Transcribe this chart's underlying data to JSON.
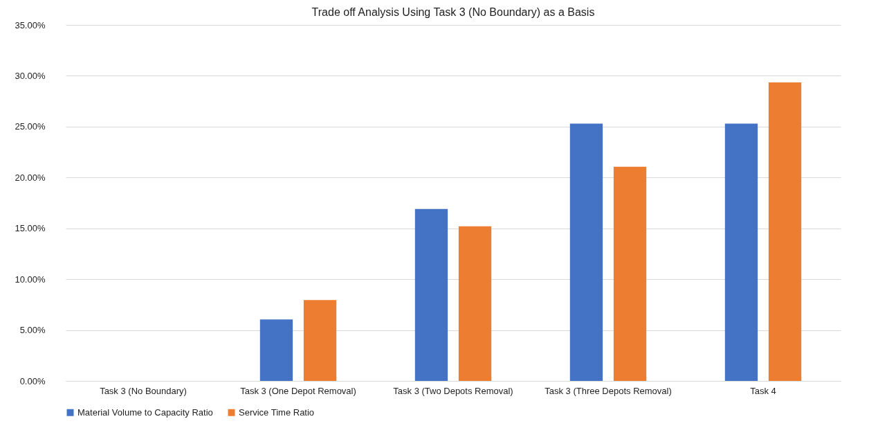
{
  "chart_data": {
    "type": "bar",
    "title": "Trade off Analysis Using Task 3 (No Boundary) as a Basis",
    "categories": [
      "Task 3 (No Boundary)",
      "Task 3 (One Depot Removal)",
      "Task 3 (Two Depots Removal)",
      "Task 3 (Three Depots Removal)",
      "Task 4"
    ],
    "series": [
      {
        "name": "Material Volume to Capacity Ratio",
        "color": "#4472c4",
        "values": [
          0,
          6.05,
          16.9,
          25.3,
          25.3
        ]
      },
      {
        "name": "Service Time Ratio",
        "color": "#ed7d31",
        "values": [
          0,
          7.95,
          15.2,
          21.05,
          29.35
        ]
      }
    ],
    "ylim": [
      0,
      35
    ],
    "yticks": [
      {
        "value": 0,
        "label": "0.00%"
      },
      {
        "value": 5,
        "label": "5.00%"
      },
      {
        "value": 10,
        "label": "10.00%"
      },
      {
        "value": 15,
        "label": "15.00%"
      },
      {
        "value": 20,
        "label": "20.00%"
      },
      {
        "value": 25,
        "label": "25.00%"
      },
      {
        "value": 30,
        "label": "30.00%"
      },
      {
        "value": 35,
        "label": "35.00%"
      }
    ],
    "grid": "y",
    "legend": "bottom"
  }
}
